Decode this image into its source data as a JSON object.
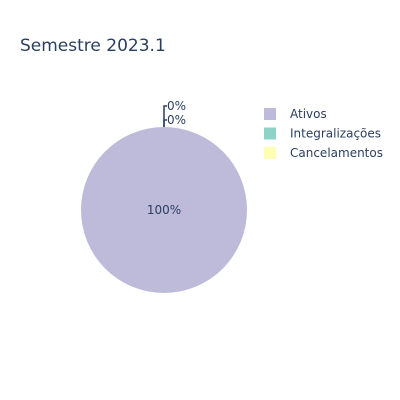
{
  "chart_data": {
    "type": "pie",
    "title": "Semestre 2023.1",
    "categories": [
      "Ativos",
      "Integralizações",
      "Cancelamentos"
    ],
    "values": [
      100,
      0,
      0
    ],
    "labels": [
      "100%",
      "0%",
      "0%"
    ],
    "colors": [
      "#bebada",
      "#8dd3c7",
      "#ffffb3"
    ],
    "legend": "top-right"
  }
}
